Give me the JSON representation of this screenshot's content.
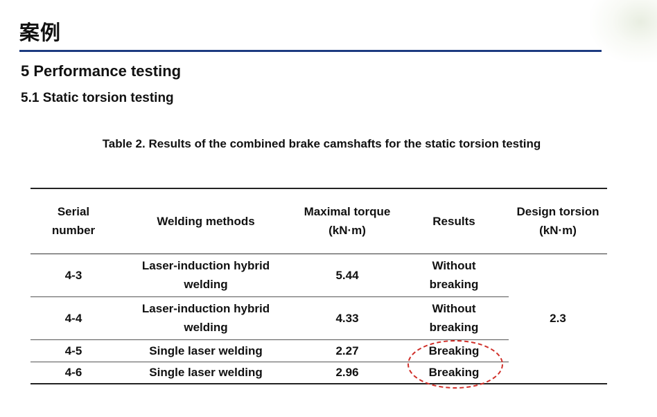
{
  "slide": {
    "title": "案例"
  },
  "section": {
    "heading": "5 Performance testing",
    "subheading": "5.1 Static torsion testing"
  },
  "table": {
    "caption": "Table 2. Results of the combined brake camshafts for the static torsion testing",
    "headers": {
      "serial": "Serial number",
      "method": "Welding methods",
      "torque": "Maximal torque (kN·m)",
      "result": "Results",
      "design": "Design torsion (kN·m)"
    },
    "rows": [
      {
        "serial": "4-3",
        "method": "Laser-induction hybrid welding",
        "torque": "5.44",
        "result": "Without breaking"
      },
      {
        "serial": "4-4",
        "method": "Laser-induction hybrid welding",
        "torque": "4.33",
        "result": "Without breaking"
      },
      {
        "serial": "4-5",
        "method": "Single laser welding",
        "torque": "2.27",
        "result": "Breaking"
      },
      {
        "serial": "4-6",
        "method": "Single laser welding",
        "torque": "2.96",
        "result": "Breaking"
      }
    ],
    "design_torsion": "2.3"
  },
  "colors": {
    "title_rule": "#1c3b80",
    "highlight_circle": "#d0302a"
  }
}
